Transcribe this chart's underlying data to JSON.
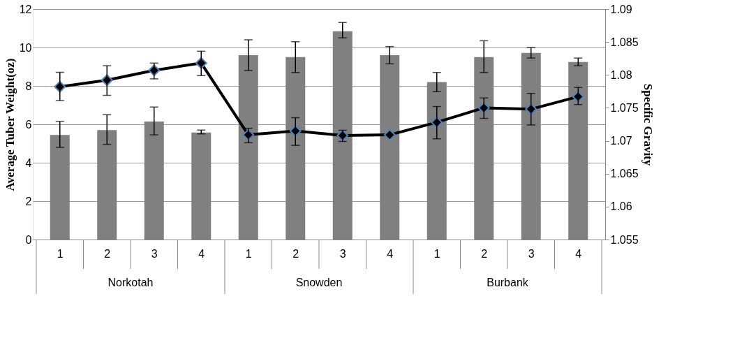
{
  "chart_data": {
    "type": "bar",
    "ylabel": "Average Tuber Weight(oz)",
    "y2label": "Specific Gravity",
    "categories": [
      "1",
      "2",
      "3",
      "4",
      "1",
      "2",
      "3",
      "4",
      "1",
      "2",
      "3",
      "4"
    ],
    "annotations": [
      "Norkotah",
      "Snowden",
      "Burbank"
    ],
    "ylim": [
      0,
      12
    ],
    "yticks": [
      0,
      2,
      4,
      6,
      8,
      10,
      12
    ],
    "y2lim": [
      1.055,
      1.09
    ],
    "y2ticks": [
      1.055,
      1.06,
      1.065,
      1.07,
      1.075,
      1.08,
      1.085,
      1.09
    ],
    "grid": "y",
    "series": [
      {
        "color": "#808080",
        "values": [
          5.45,
          5.7,
          6.15,
          5.57,
          9.6,
          9.5,
          10.85,
          9.6,
          8.2,
          9.5,
          9.72,
          9.25
        ],
        "errors": [
          [
            4.8,
            6.15
          ],
          [
            4.95,
            6.5
          ],
          [
            5.45,
            6.9
          ],
          [
            5.5,
            5.7
          ],
          [
            8.8,
            10.4
          ],
          [
            8.7,
            10.3
          ],
          [
            10.5,
            11.3
          ],
          [
            9.15,
            10.05
          ],
          [
            7.7,
            8.7
          ],
          [
            8.7,
            10.35
          ],
          [
            9.45,
            10.0
          ],
          [
            9.05,
            9.45
          ]
        ]
      },
      {
        "type": "line",
        "axis": "y2",
        "color": "#000000",
        "marker": "diamond",
        "values": [
          1.0782,
          1.0792,
          1.0807,
          1.0818,
          1.0709,
          1.0715,
          1.0708,
          1.0709,
          1.0728,
          1.075,
          1.0748,
          1.0767
        ],
        "errors": [
          [
            1.0761,
            1.0804
          ],
          [
            1.0769,
            1.0814
          ],
          [
            1.0794,
            1.0818
          ],
          [
            1.0799,
            1.0836
          ],
          [
            1.0697,
            1.0719
          ],
          [
            1.0693,
            1.0735
          ],
          [
            1.0699,
            1.0716
          ],
          null,
          [
            1.0703,
            1.0752
          ],
          [
            1.0734,
            1.0765
          ],
          [
            1.0724,
            1.0772
          ],
          [
            1.0755,
            1.0781
          ]
        ]
      }
    ]
  }
}
